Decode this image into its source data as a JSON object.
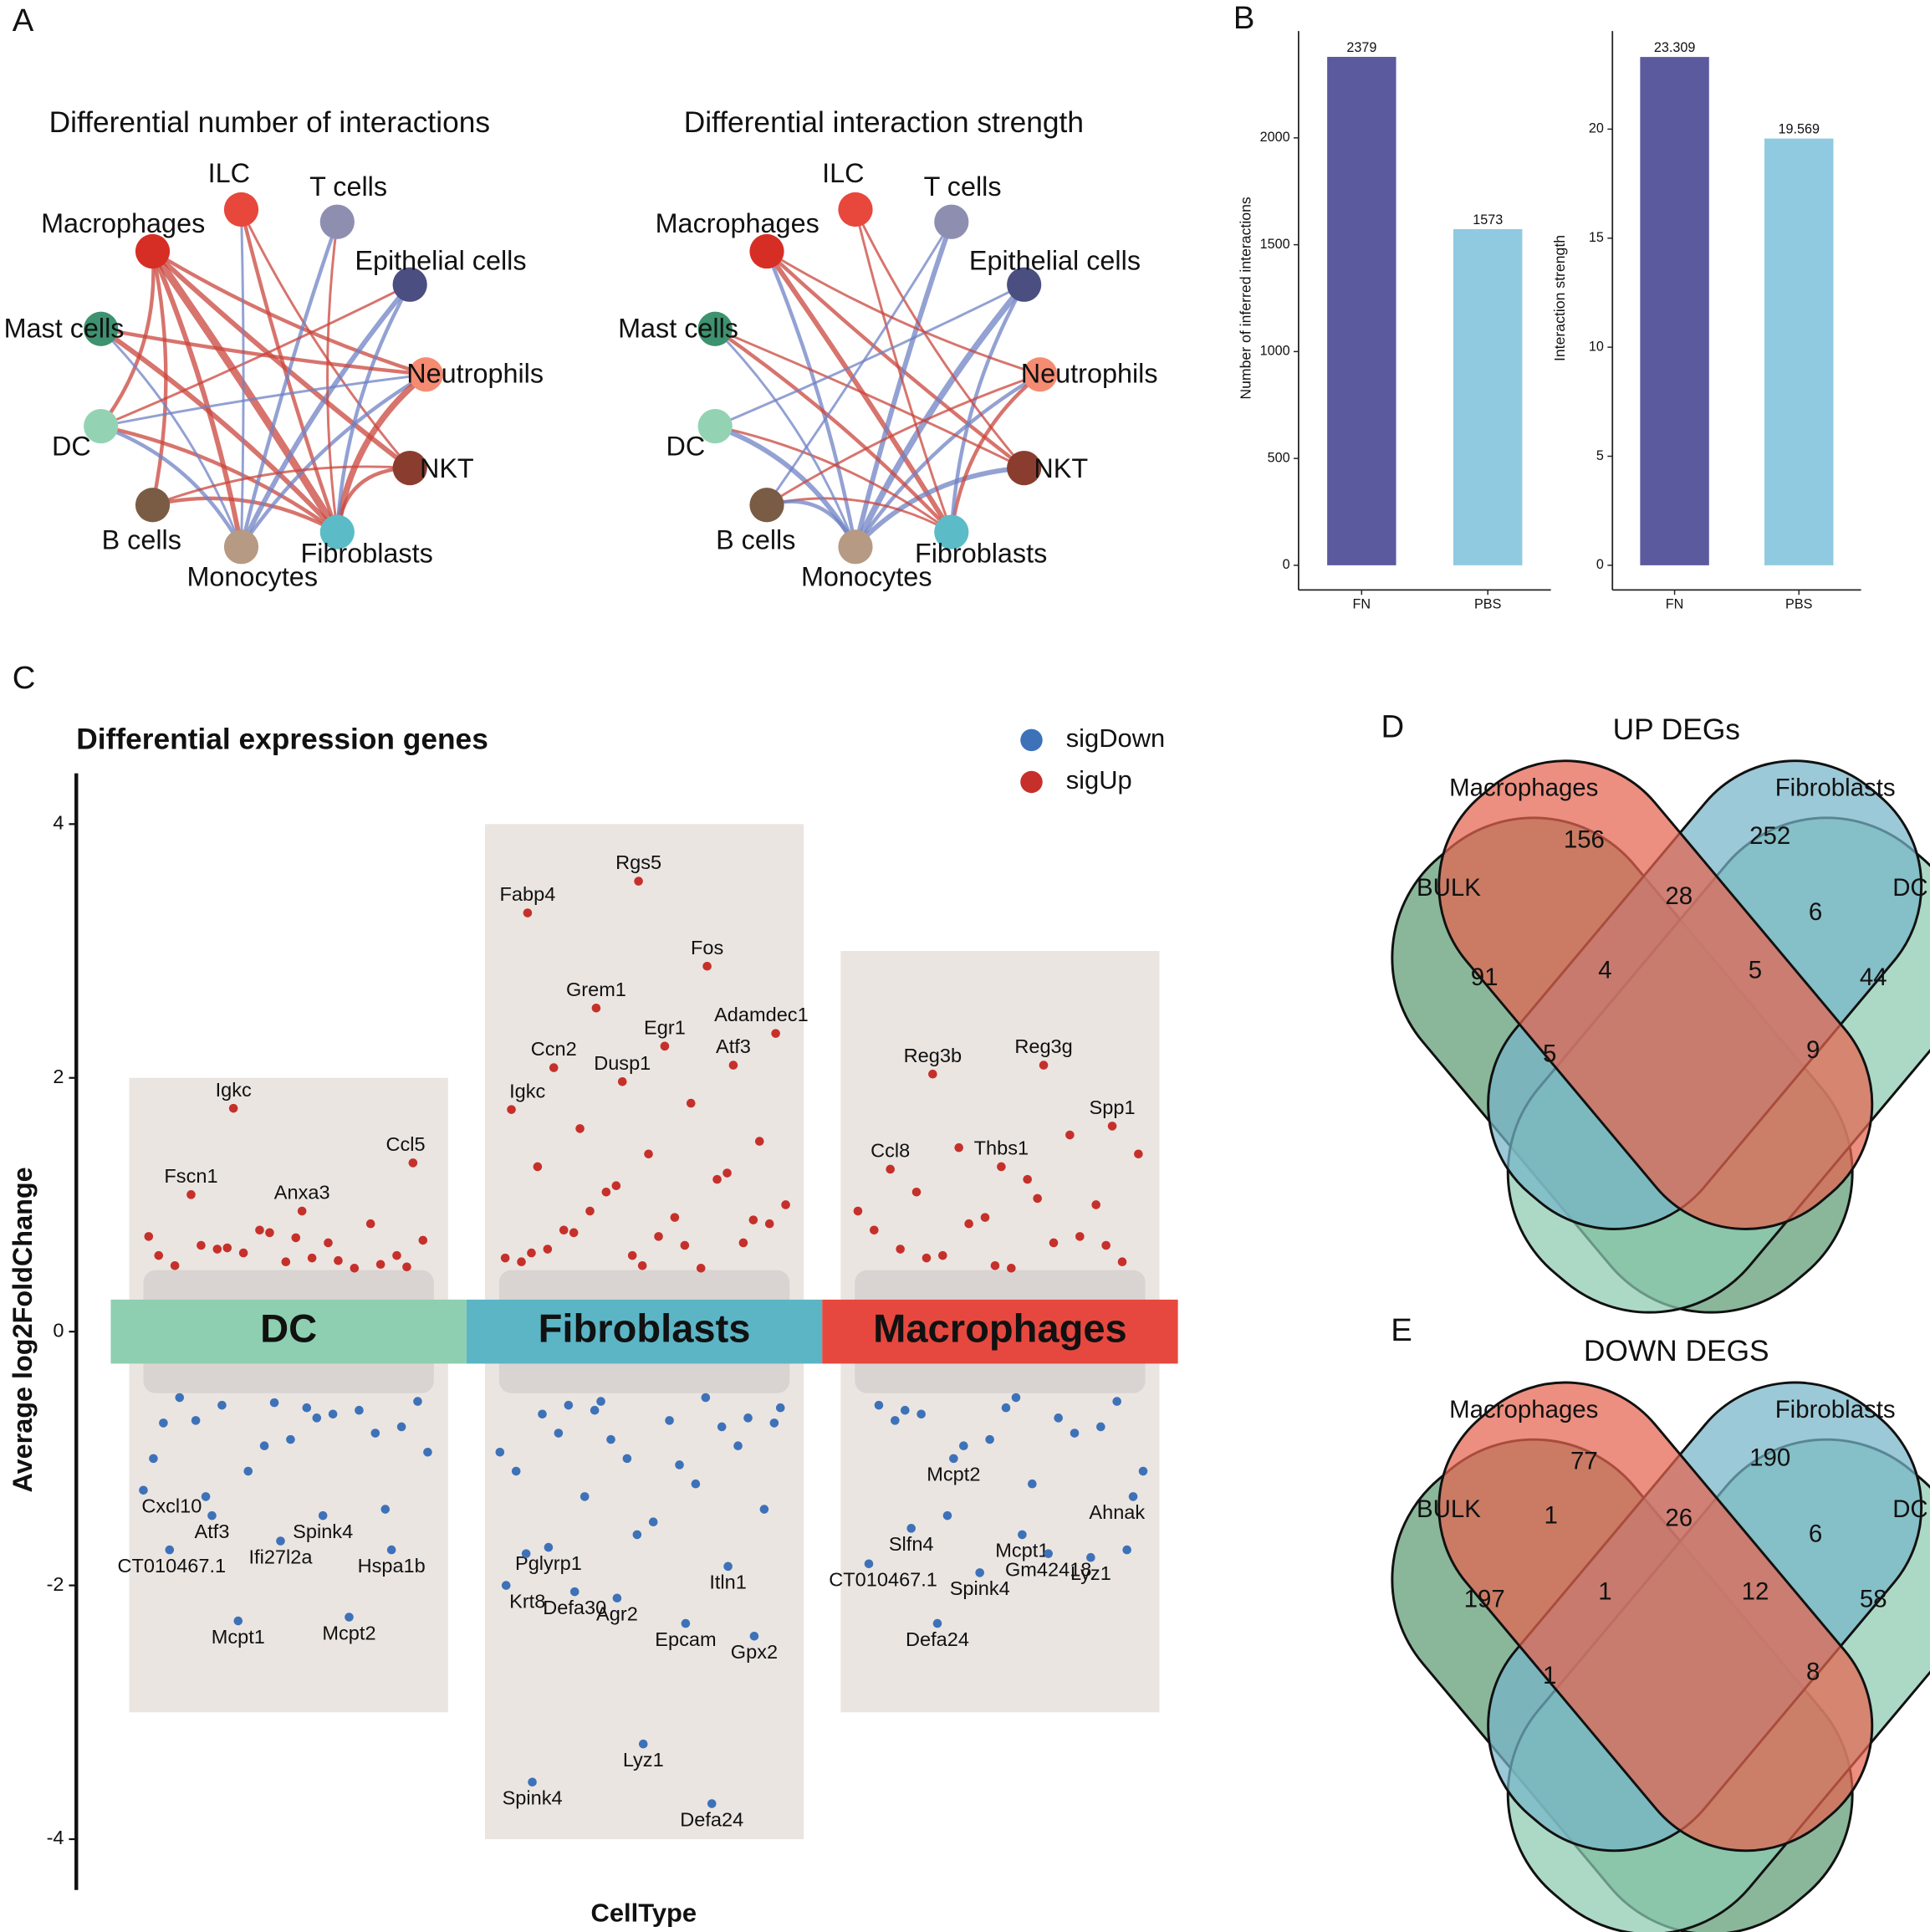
{
  "panel_labels": [
    "A",
    "B",
    "C",
    "D",
    "E"
  ],
  "networks": [
    {
      "title": "Differential number of interactions",
      "edges": [
        [
          10,
          5,
          6
        ],
        [
          10,
          4,
          4
        ],
        [
          10,
          3,
          3
        ],
        [
          10,
          6,
          4
        ],
        [
          10,
          8,
          3
        ],
        [
          10,
          7,
          3
        ],
        [
          0,
          5,
          3
        ],
        [
          0,
          4,
          2
        ],
        [
          9,
          5,
          4
        ],
        [
          8,
          5,
          3
        ],
        [
          7,
          5,
          3
        ],
        [
          6,
          2,
          -4
        ],
        [
          6,
          1,
          -3
        ],
        [
          6,
          3,
          -3
        ],
        [
          5,
          3,
          5
        ],
        [
          5,
          4,
          3
        ],
        [
          5,
          2,
          -3
        ],
        [
          8,
          6,
          -3
        ],
        [
          9,
          6,
          -2
        ],
        [
          1,
          5,
          2
        ],
        [
          2,
          8,
          2
        ],
        [
          3,
          8,
          -2
        ],
        [
          0,
          6,
          -2
        ],
        [
          9,
          3,
          3
        ],
        [
          7,
          4,
          2
        ]
      ]
    },
    {
      "title": "Differential interaction strength",
      "edges": [
        [
          10,
          5,
          4
        ],
        [
          10,
          4,
          3
        ],
        [
          10,
          6,
          -3
        ],
        [
          6,
          2,
          -5
        ],
        [
          6,
          1,
          -4
        ],
        [
          6,
          4,
          -4
        ],
        [
          6,
          3,
          -3
        ],
        [
          5,
          3,
          3
        ],
        [
          5,
          2,
          -3
        ],
        [
          9,
          5,
          3
        ],
        [
          8,
          5,
          2
        ],
        [
          7,
          5,
          2
        ],
        [
          0,
          5,
          2
        ],
        [
          8,
          6,
          -4
        ],
        [
          7,
          6,
          -3
        ],
        [
          9,
          6,
          -2
        ],
        [
          0,
          4,
          2
        ],
        [
          9,
          4,
          2
        ],
        [
          2,
          8,
          -2
        ],
        [
          1,
          7,
          -2
        ],
        [
          10,
          3,
          2
        ],
        [
          3,
          7,
          2
        ]
      ]
    }
  ],
  "nodes": [
    {
      "label": "ILC",
      "color": "#e8473c"
    },
    {
      "label": "T cells",
      "color": "#8e8fb0"
    },
    {
      "label": "Epithelial cells",
      "color": "#4b4e80"
    },
    {
      "label": "Neutrophils",
      "color": "#f58c71"
    },
    {
      "label": "NKT",
      "color": "#8a3d2e"
    },
    {
      "label": "Fibroblasts",
      "color": "#5bbcc7"
    },
    {
      "label": "Monocytes",
      "color": "#b69a84"
    },
    {
      "label": "B cells",
      "color": "#7a5c45"
    },
    {
      "label": "DC",
      "color": "#93d3b4"
    },
    {
      "label": "Mast cells",
      "color": "#3d9270"
    },
    {
      "label": "Macrophages",
      "color": "#d62e25"
    }
  ],
  "chart_data": [
    {
      "type": "bar",
      "categories": [
        "FN",
        "PBS"
      ],
      "values": [
        2379,
        1573
      ],
      "colors": [
        "#5c5a9e",
        "#8fcae0"
      ],
      "ylabel": "Number of inferred interactions",
      "ylim": [
        0,
        2500
      ],
      "yticks": [
        0,
        500,
        1000,
        1500,
        2000
      ]
    },
    {
      "type": "bar",
      "categories": [
        "FN",
        "PBS"
      ],
      "values": [
        23.309,
        19.569
      ],
      "colors": [
        "#5c5a9e",
        "#8fcae0"
      ],
      "ylabel": "Interaction strength",
      "ylim": [
        0,
        24.5
      ],
      "yticks": [
        0,
        5,
        10,
        15,
        20
      ]
    },
    {
      "type": "scatter",
      "title": "Differential expression genes",
      "xlabel": "CellType",
      "ylabel": "Average log2FoldChange",
      "categories": [
        "DC",
        "Fibroblasts",
        "Macrophages"
      ],
      "category_colors": [
        "#8dcfb0",
        "#5bb5c5",
        "#e6483f"
      ],
      "ylim": [
        -4.4,
        4.4
      ],
      "yticks": [
        -4,
        -2,
        0,
        2,
        4
      ],
      "series": [
        {
          "name": "sigDown",
          "color": "#3d72b9",
          "groups": [
            {
              "values": [
                -1.25,
                -1.45,
                -1.45,
                -1.72,
                -1.65,
                -1.72,
                -2.25,
                -2.28,
                -0.55,
                -0.6,
                -0.7,
                -0.8,
                -0.9,
                -1.0,
                -0.65,
                -0.58,
                -0.75,
                -0.85,
                -0.52,
                -0.62,
                -1.1,
                -0.95,
                -0.68,
                -1.3,
                -1.4,
                -0.56,
                -0.72
              ],
              "labels": [
                "Cxcl10",
                "Spink4",
                "Atf3",
                "Hspa1b",
                "Ifi27l2a",
                "CT010467.1",
                "Mcpt2",
                "Mcpt1",
                null,
                null,
                null,
                null,
                null,
                null,
                null,
                null,
                null,
                null,
                null,
                null,
                null,
                null,
                null,
                null,
                null,
                null,
                null
              ]
            },
            {
              "values": [
                -1.7,
                -1.85,
                -2.1,
                -2.0,
                -2.3,
                -2.05,
                -2.4,
                -3.25,
                -3.55,
                -3.72,
                -0.55,
                -0.6,
                -0.7,
                -0.8,
                -0.9,
                -1.0,
                -1.1,
                -1.2,
                -1.3,
                -1.4,
                -1.5,
                -0.65,
                -0.75,
                -0.85,
                -0.95,
                -1.05,
                -0.58,
                -0.68,
                -1.6,
                -1.75,
                -0.52,
                -0.62,
                -0.72
              ],
              "labels": [
                "Pglyrp1",
                "Itln1",
                "Agr2",
                "Krt8",
                "Epcam",
                "Defa30",
                "Gpx2",
                "Lyz1",
                "Spink4",
                "Defa24",
                null,
                null,
                null,
                null,
                null,
                null,
                null,
                null,
                null,
                null,
                null,
                null,
                null,
                null,
                null,
                null,
                null,
                null,
                null,
                null,
                null,
                null,
                null
              ]
            },
            {
              "values": [
                -1.0,
                -1.3,
                -1.6,
                -1.55,
                -1.78,
                -1.9,
                -1.83,
                -1.75,
                -2.3,
                -0.55,
                -0.6,
                -0.7,
                -0.8,
                -0.9,
                -1.1,
                -1.2,
                -0.65,
                -0.75,
                -0.85,
                -0.58,
                -0.68,
                -1.45,
                -1.72,
                -0.52,
                -0.62
              ],
              "labels": [
                "Mcpt2",
                "Ahnak",
                "Mcpt1",
                "Slfn4",
                "Lyz1",
                "Spink4",
                "CT010467.1",
                "Gm42418",
                "Defa24",
                null,
                null,
                null,
                null,
                null,
                null,
                null,
                null,
                null,
                null,
                null,
                null,
                null,
                null,
                null,
                null
              ]
            }
          ]
        },
        {
          "name": "sigUp",
          "color": "#c6302b",
          "groups": [
            {
              "values": [
                1.76,
                1.33,
                0.95,
                1.08,
                0.85,
                0.8,
                0.75,
                0.7,
                0.65,
                0.6,
                0.55,
                0.52,
                0.5,
                0.62,
                0.72,
                0.58,
                0.68,
                0.53,
                0.78,
                0.6,
                0.56,
                0.66,
                0.51,
                0.74
              ],
              "labels": [
                "Igkc",
                "Ccl5",
                "Anxa3",
                "Fscn1",
                null,
                null,
                null,
                null,
                null,
                null,
                null,
                null,
                null,
                null,
                null,
                null,
                null,
                null,
                null,
                null,
                null,
                null,
                null,
                null
              ]
            },
            {
              "values": [
                3.55,
                3.3,
                2.88,
                2.55,
                2.35,
                2.25,
                2.08,
                2.1,
                1.97,
                1.75,
                1.8,
                1.6,
                1.5,
                1.4,
                1.3,
                1.2,
                1.1,
                1.0,
                0.9,
                0.8,
                0.7,
                0.6,
                0.55,
                0.5,
                0.95,
                0.85,
                0.75,
                0.65,
                1.25,
                1.15,
                0.58,
                0.68,
                0.78,
                0.88,
                0.52,
                0.62
              ],
              "labels": [
                "Rgs5",
                "Fabp4",
                "Fos",
                "Grem1",
                "Adamdec1",
                "Egr1",
                "Ccn2",
                "Atf3",
                "Dusp1",
                "Igkc",
                null,
                null,
                null,
                null,
                null,
                null,
                null,
                null,
                null,
                null,
                null,
                null,
                null,
                null,
                null,
                null,
                null,
                null,
                null,
                null,
                null,
                null,
                null,
                null,
                null,
                null
              ]
            },
            {
              "values": [
                2.1,
                2.03,
                1.62,
                1.3,
                1.28,
                1.55,
                1.45,
                1.4,
                1.2,
                1.1,
                1.0,
                0.9,
                0.8,
                0.7,
                0.6,
                0.55,
                0.5,
                0.65,
                0.75,
                0.85,
                0.95,
                1.05,
                0.58,
                0.68,
                0.52
              ],
              "labels": [
                "Reg3g",
                "Reg3b",
                "Spp1",
                "Thbs1",
                "Ccl8",
                null,
                null,
                null,
                null,
                null,
                null,
                null,
                null,
                null,
                null,
                null,
                null,
                null,
                null,
                null,
                null,
                null,
                null,
                null,
                null
              ]
            }
          ]
        }
      ]
    }
  ],
  "venns": [
    {
      "title": "UP DEGs",
      "sets": [
        "Macrophages",
        "Fibroblasts",
        "BULK",
        "DC"
      ],
      "colors": [
        "#e4644f",
        "#76b4c8",
        "#5d9b73",
        "#8ccab0"
      ],
      "regions": [
        156,
        252,
        91,
        44,
        28,
        6,
        4,
        5,
        5,
        9
      ]
    },
    {
      "title": "DOWN DEGS",
      "sets": [
        "Macrophages",
        "Fibroblasts",
        "BULK",
        "DC"
      ],
      "colors": [
        "#e4644f",
        "#76b4c8",
        "#5d9b73",
        "#8ccab0"
      ],
      "regions": [
        77,
        190,
        197,
        58,
        26,
        6,
        1,
        12,
        1,
        8,
        1
      ]
    }
  ]
}
